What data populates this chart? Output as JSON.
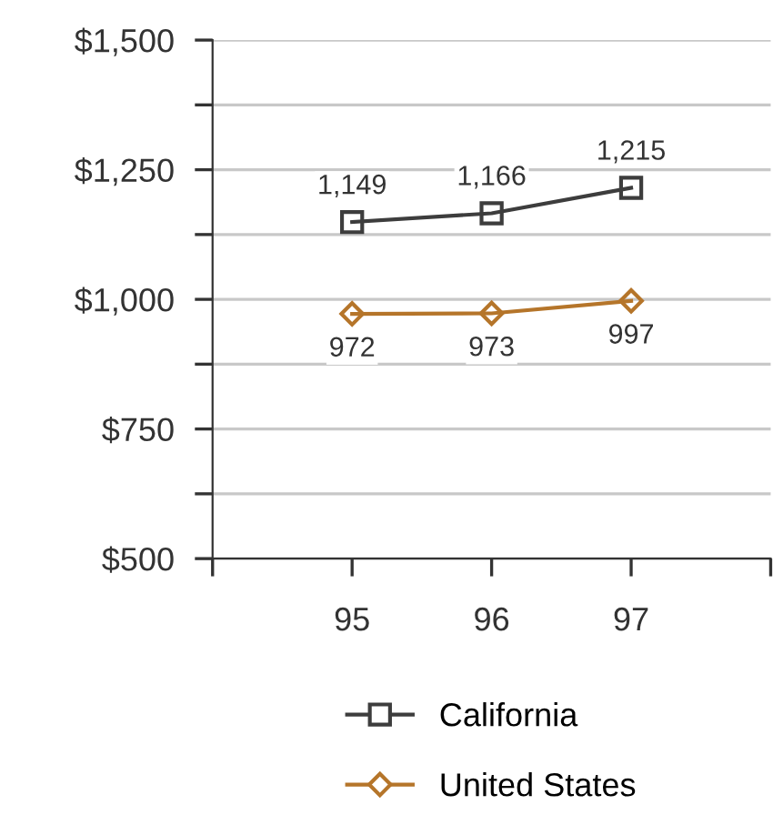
{
  "chart_data": {
    "type": "line",
    "x": [
      95,
      96,
      97
    ],
    "xlim": [
      94,
      98
    ],
    "xticks": [
      {
        "value": 94,
        "label": null
      },
      95,
      96,
      97,
      {
        "value": 98,
        "label": null
      }
    ],
    "ylim": [
      500,
      1500
    ],
    "yticks": [
      {
        "value": 500,
        "label": "$500"
      },
      {
        "value": 625,
        "label": null
      },
      {
        "value": 750,
        "label": "$750"
      },
      {
        "value": 875,
        "label": null
      },
      {
        "value": 1000,
        "label": "$1,000"
      },
      {
        "value": 1125,
        "label": null
      },
      {
        "value": 1250,
        "label": "$1,250"
      },
      {
        "value": 1375,
        "label": null
      },
      {
        "value": 1500,
        "label": "$1,500"
      }
    ],
    "grid": "y",
    "legend": "bottom",
    "series": [
      {
        "name": "California",
        "color": "#3d3d3d",
        "marker": "square",
        "values": [
          1149,
          1166,
          1215
        ],
        "value_labels": [
          "1,149",
          "1,166",
          "1,215"
        ]
      },
      {
        "name": "United States",
        "color": "#b5752a",
        "marker": "diamond",
        "values": [
          972,
          973,
          997
        ],
        "value_labels": [
          "972",
          "973",
          "997"
        ]
      }
    ]
  }
}
